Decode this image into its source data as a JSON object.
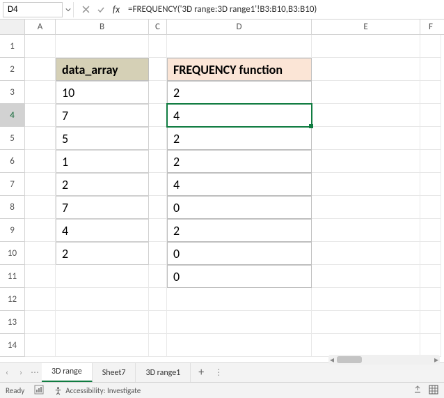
{
  "namebox": "D4",
  "formula": "=FREQUENCY('3D range:3D range1'!B3:B10,B3:B10)",
  "columns": [
    {
      "k": "A",
      "w": "cA",
      "label": "A"
    },
    {
      "k": "B",
      "w": "cB",
      "label": "B"
    },
    {
      "k": "C",
      "w": "cC",
      "label": "C"
    },
    {
      "k": "D",
      "w": "cD",
      "label": "D"
    },
    {
      "k": "E",
      "w": "cE",
      "label": "E"
    },
    {
      "k": "F",
      "w": "cF",
      "label": "F"
    }
  ],
  "row_count": 14,
  "selected_row": 4,
  "headers": {
    "B": "data_array",
    "D": "FREQUENCY function"
  },
  "data_b": [
    "10",
    "7",
    "5",
    "1",
    "2",
    "7",
    "4",
    "2"
  ],
  "data_d": [
    "2",
    "4",
    "2",
    "2",
    "4",
    "0",
    "2",
    "0",
    "0"
  ],
  "tabs": {
    "items": [
      "3D range",
      "Sheet7",
      "3D range1"
    ],
    "active": 0,
    "add": "+"
  },
  "status": {
    "ready": "Ready",
    "accessibility": "Accessibility: Investigate"
  },
  "colors": {
    "selection": "#107c41",
    "hdr_b_bg": "#d5d0b6",
    "hdr_d_bg": "#fbe5d6"
  }
}
